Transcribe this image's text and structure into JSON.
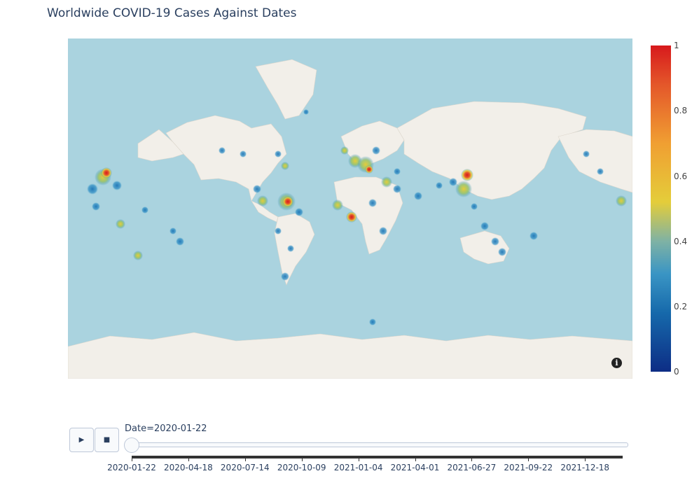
{
  "title": "Worldwide COVID-19 Cases Against Dates",
  "colorbar": {
    "ticks": [
      "1",
      "0.8",
      "0.6",
      "0.4",
      "0.2",
      "0"
    ],
    "colors": [
      "#0d2d85",
      "#1669ab",
      "#3a95c4",
      "#7fb2a4",
      "#e4cd3a",
      "#f09f32",
      "#e4572a",
      "#d7191c"
    ]
  },
  "map": {
    "info_icon": "info-icon",
    "ocean_color": "#aad3df",
    "land_color": "#f2efe9"
  },
  "player": {
    "play_icon": "▶",
    "stop_icon": "■",
    "current_label": "Date=2020-01-22",
    "slider_value": 0
  },
  "slider_ticks": [
    "2020-01-22",
    "2020-04-18",
    "2020-07-14",
    "2020-10-09",
    "2021-01-04",
    "2021-04-01",
    "2021-06-27",
    "2021-09-22",
    "2021-12-18"
  ]
}
